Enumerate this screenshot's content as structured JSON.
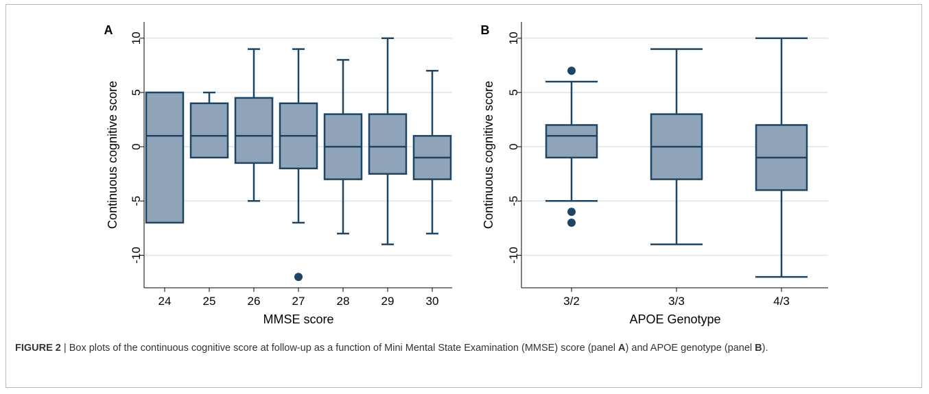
{
  "chart_data": [
    {
      "panel": "A",
      "type": "box",
      "xlabel": "MMSE score",
      "ylabel": "Continuous cognitive score",
      "ylim": [
        -13,
        11.5
      ],
      "yticks": [
        10,
        5,
        0,
        -5,
        -10
      ],
      "ytick_labels": [
        "10",
        "5",
        "0",
        "-5",
        "-10"
      ],
      "grid": true,
      "categories": [
        "24",
        "25",
        "26",
        "27",
        "28",
        "29",
        "30"
      ],
      "boxes": [
        {
          "category": "24",
          "whisker_low": -7,
          "q1": -7,
          "median": 1,
          "q3": 5,
          "whisker_high": 5,
          "outliers": []
        },
        {
          "category": "25",
          "whisker_low": -1,
          "q1": -1,
          "median": 1,
          "q3": 4,
          "whisker_high": 5,
          "outliers": []
        },
        {
          "category": "26",
          "whisker_low": -5,
          "q1": -1.5,
          "median": 1,
          "q3": 4.5,
          "whisker_high": 9,
          "outliers": []
        },
        {
          "category": "27",
          "whisker_low": -7,
          "q1": -2,
          "median": 1,
          "q3": 4,
          "whisker_high": 9,
          "outliers": [
            -12
          ]
        },
        {
          "category": "28",
          "whisker_low": -8,
          "q1": -3,
          "median": 0,
          "q3": 3,
          "whisker_high": 8,
          "outliers": []
        },
        {
          "category": "29",
          "whisker_low": -9,
          "q1": -2.5,
          "median": 0,
          "q3": 3,
          "whisker_high": 10,
          "outliers": []
        },
        {
          "category": "30",
          "whisker_low": -8,
          "q1": -3,
          "median": -1,
          "q3": 1,
          "whisker_high": 7,
          "outliers": []
        }
      ]
    },
    {
      "panel": "B",
      "type": "box",
      "xlabel": "APOE Genotype",
      "ylabel": "Continuous cognitive score",
      "ylim": [
        -13,
        11.5
      ],
      "yticks": [
        10,
        5,
        0,
        -5,
        -10
      ],
      "ytick_labels": [
        "10",
        "5",
        "0",
        "-5",
        "-10"
      ],
      "grid": true,
      "categories": [
        "3/2",
        "3/3",
        "4/3"
      ],
      "boxes": [
        {
          "category": "3/2",
          "whisker_low": -5,
          "q1": -1,
          "median": 1,
          "q3": 2,
          "whisker_high": 6,
          "outliers": [
            7,
            -6,
            -7
          ]
        },
        {
          "category": "3/3",
          "whisker_low": -9,
          "q1": -3,
          "median": 0,
          "q3": 3,
          "whisker_high": 9,
          "outliers": []
        },
        {
          "category": "4/3",
          "whisker_low": -12,
          "q1": -4,
          "median": -1,
          "q3": 2,
          "whisker_high": 10,
          "outliers": []
        }
      ]
    }
  ],
  "colors": {
    "box_fill": "#8fa3b9",
    "stroke": "#1f4565",
    "grid": "#e3ebee",
    "axis": "#000000"
  },
  "caption": {
    "figure_label": "FIGURE 2",
    "separator": "|",
    "text_1": "Box plots of the continuous cognitive score at follow-up as a function of Mini Mental State Examination (MMSE) score (panel",
    "panel_a": "A",
    "text_2": ") and APOE genotype (panel",
    "panel_b": "B",
    "text_3": ")."
  }
}
